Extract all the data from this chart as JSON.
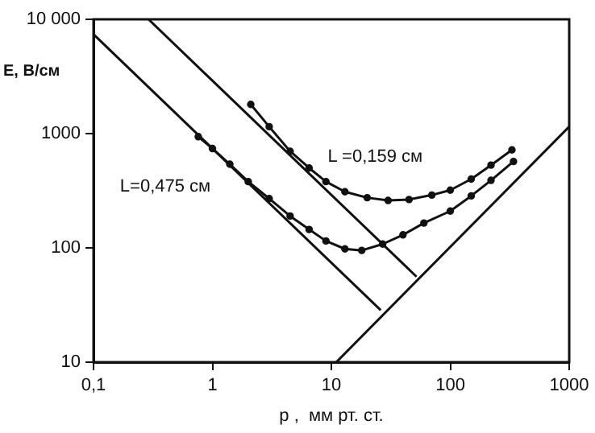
{
  "chart_data": {
    "type": "line",
    "xlabel": "p ,  мм рт. ст.",
    "ylabel": "E, В/см",
    "log": "xy",
    "grid": false,
    "legend": false,
    "xlim": [
      0.1,
      1000
    ],
    "xticks": [
      {
        "value": 0.1,
        "label": "0,1"
      },
      1,
      10,
      100,
      1000
    ],
    "ylim": [
      10,
      10000
    ],
    "yticks": [
      10,
      100,
      1000,
      {
        "value": 10000,
        "label": "10 000"
      }
    ],
    "series": [
      {
        "color": "#111111",
        "marker": "none",
        "x": [
          0.1,
          26
        ],
        "values": [
          7400,
          28.5
        ]
      },
      {
        "color": "#111111",
        "marker": "none",
        "x": [
          0.29,
          52
        ],
        "values": [
          10000,
          56
        ]
      },
      {
        "color": "#111111",
        "marker": "none",
        "x": [
          11,
          1000
        ],
        "values": [
          10,
          1150
        ]
      },
      {
        "name": "L =0,159 см",
        "color": "#111111",
        "marker": "circle",
        "x": [
          2.1,
          3,
          4.5,
          6.5,
          9,
          13,
          20,
          30,
          45,
          70,
          100,
          150,
          220,
          330
        ],
        "values": [
          1800,
          1150,
          700,
          500,
          380,
          310,
          275,
          260,
          265,
          290,
          320,
          400,
          530,
          720
        ]
      },
      {
        "name": "L=0,475 см",
        "color": "#111111",
        "marker": "circle",
        "x": [
          0.76,
          1,
          1.4,
          2,
          3,
          4.5,
          6.5,
          9,
          13,
          18,
          27,
          40,
          60,
          100,
          150,
          220,
          340
        ],
        "values": [
          940,
          740,
          540,
          380,
          270,
          190,
          145,
          115,
          98,
          95,
          108,
          130,
          165,
          210,
          285,
          390,
          570
        ]
      }
    ]
  }
}
